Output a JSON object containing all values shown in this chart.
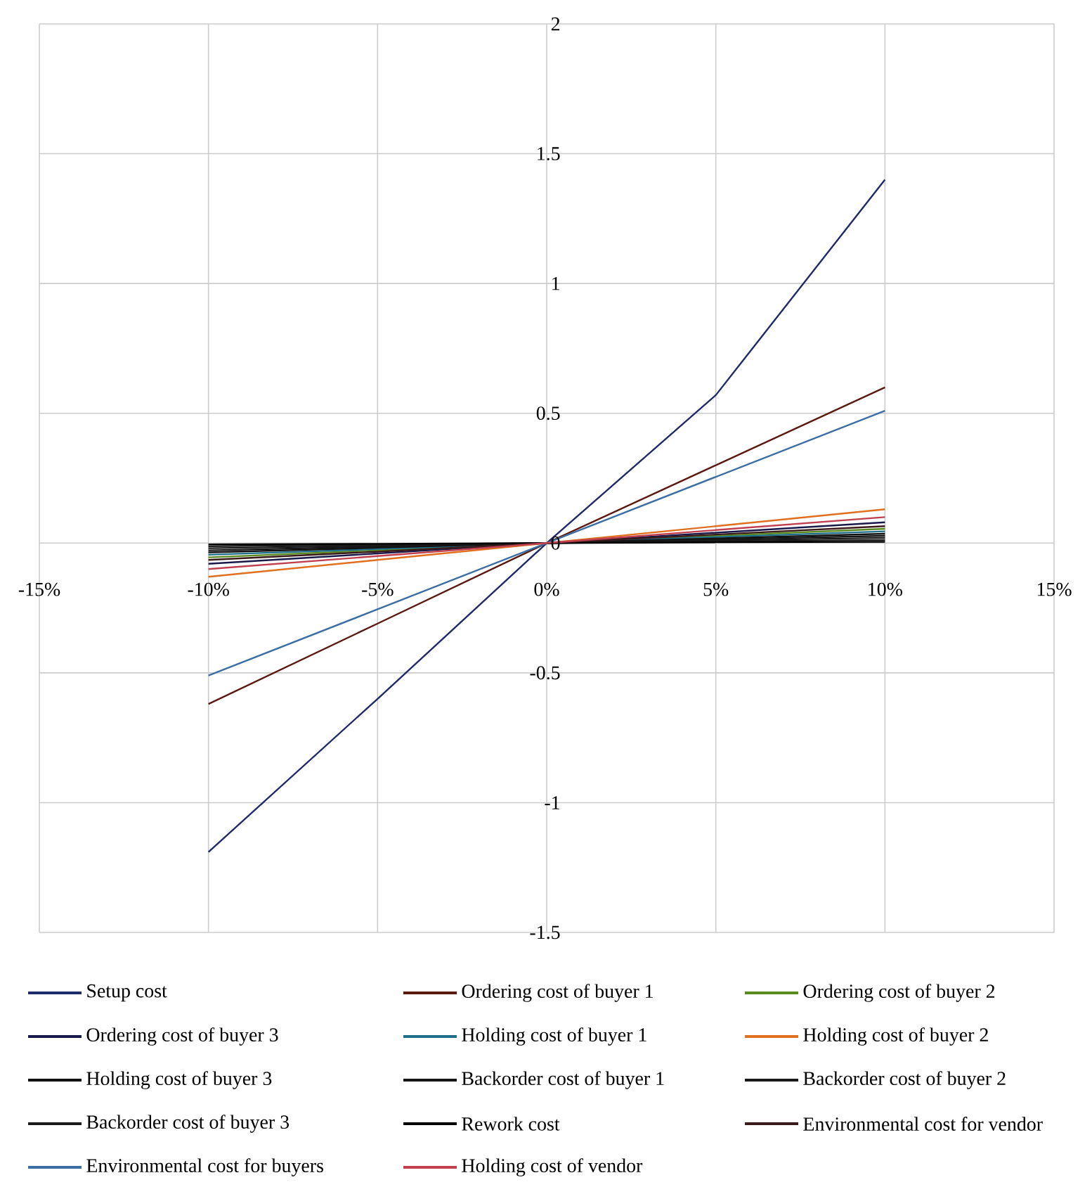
{
  "chart_data": {
    "type": "line",
    "x": [
      -10,
      -5,
      0,
      5,
      10
    ],
    "xlim": [
      -15,
      15
    ],
    "ylim": [
      -1.5,
      2
    ],
    "xticks": [
      {
        "value": -15,
        "label": "-15%"
      },
      {
        "value": -10,
        "label": "-10%"
      },
      {
        "value": -5,
        "label": "-5%"
      },
      {
        "value": 0,
        "label": "0%"
      },
      {
        "value": 5,
        "label": "5%"
      },
      {
        "value": 10,
        "label": "10%"
      },
      {
        "value": 15,
        "label": "15%"
      }
    ],
    "yticks": [
      -1.5,
      -1,
      -0.5,
      0,
      0.5,
      1,
      1.5,
      2
    ],
    "grid": true,
    "legend": "bottom",
    "marker": "none",
    "line_style": "solid",
    "series": [
      {
        "name": "Setup cost",
        "color": "#1f2a6b",
        "values": [
          -1.19,
          -0.6,
          0,
          0.57,
          1.4
        ]
      },
      {
        "name": "Ordering cost of buyer 1",
        "color": "#5a1a10",
        "values": [
          -0.62,
          -0.31,
          0,
          0.3,
          0.6
        ]
      },
      {
        "name": "Ordering cost of buyer 2",
        "color": "#5a8a20",
        "values": [
          -0.055,
          -0.028,
          0,
          0.028,
          0.055
        ]
      },
      {
        "name": "Ordering cost of buyer 3",
        "color": "#1a1a4a",
        "values": [
          -0.08,
          -0.04,
          0,
          0.04,
          0.08
        ]
      },
      {
        "name": "Holding cost of buyer 1",
        "color": "#1f6f8a",
        "values": [
          -0.045,
          -0.023,
          0,
          0.023,
          0.045
        ]
      },
      {
        "name": "Holding cost of buyer 2",
        "color": "#e07020",
        "values": [
          -0.13,
          -0.065,
          0,
          0.065,
          0.13
        ]
      },
      {
        "name": "Holding cost of buyer 3",
        "color": "#111111",
        "values": [
          -0.036,
          -0.018,
          0,
          0.018,
          0.036
        ]
      },
      {
        "name": "Backorder cost of buyer 1",
        "color": "#151515",
        "values": [
          -0.028,
          -0.014,
          0,
          0.014,
          0.028
        ]
      },
      {
        "name": "Backorder cost of buyer 2",
        "color": "#181818",
        "values": [
          -0.02,
          -0.01,
          0,
          0.01,
          0.02
        ]
      },
      {
        "name": "Backorder cost of buyer 3",
        "color": "#1b1b1b",
        "values": [
          -0.012,
          -0.006,
          0,
          0.006,
          0.012
        ]
      },
      {
        "name": "Rework cost",
        "color": "#000000",
        "values": [
          -0.005,
          -0.003,
          0,
          0.003,
          0.005
        ]
      },
      {
        "name": "Environmental cost for vendor",
        "color": "#3a1a1a",
        "values": [
          -0.065,
          -0.033,
          0,
          0.033,
          0.065
        ]
      },
      {
        "name": "Environmental cost for buyers",
        "color": "#3b6ea5",
        "values": [
          -0.51,
          -0.255,
          0,
          0.255,
          0.51
        ]
      },
      {
        "name": "Holding cost of vendor",
        "color": "#c04050",
        "values": [
          -0.1,
          -0.05,
          0,
          0.05,
          0.1
        ]
      }
    ]
  }
}
